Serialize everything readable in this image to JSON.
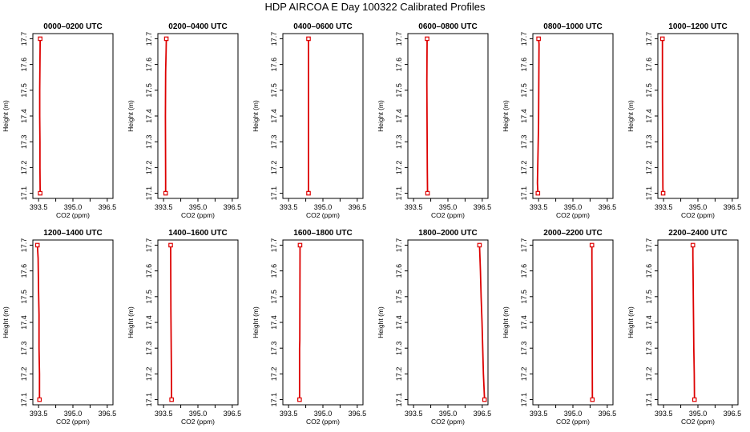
{
  "figure": {
    "title": "HDP AIRCOA E  Day 100322  Calibrated Profiles"
  },
  "style": {
    "line_color": "#dd0000",
    "frame_color": "#000000",
    "background": "#ffffff"
  },
  "chart_data": [
    {
      "type": "line",
      "title": "0000–0200 UTC",
      "xlabel": "CO2 (ppm)",
      "ylabel": "Height (m)",
      "xlim": [
        393.25,
        396.75
      ],
      "ylim": [
        17.08,
        17.72
      ],
      "xticks": [
        393.5,
        395.0,
        396.5
      ],
      "xtick_labels": [
        "393.5",
        "395.0",
        "396.5"
      ],
      "yticks": [
        17.1,
        17.2,
        17.3,
        17.4,
        17.5,
        17.6,
        17.7
      ],
      "grid": false,
      "marker": "open-square",
      "x": [
        393.57,
        393.56,
        393.56,
        393.55,
        393.55,
        393.57
      ],
      "y": [
        17.1,
        17.2,
        17.3,
        17.4,
        17.5,
        17.7
      ]
    },
    {
      "type": "line",
      "title": "0200–0400 UTC",
      "xlabel": "CO2 (ppm)",
      "ylabel": "Height (m)",
      "xlim": [
        393.25,
        396.75
      ],
      "ylim": [
        17.08,
        17.72
      ],
      "xticks": [
        393.5,
        395.0,
        396.5
      ],
      "xtick_labels": [
        "393.5",
        "395.0",
        "396.5"
      ],
      "yticks": [
        17.1,
        17.2,
        17.3,
        17.4,
        17.5,
        17.6,
        17.7
      ],
      "grid": false,
      "marker": "open-square",
      "x": [
        393.59,
        393.59,
        393.58,
        393.59,
        393.61,
        393.62
      ],
      "y": [
        17.1,
        17.16,
        17.4,
        17.57,
        17.65,
        17.7
      ]
    },
    {
      "type": "line",
      "title": "0400–0600 UTC",
      "xlabel": "CO2 (ppm)",
      "ylabel": "Height (m)",
      "xlim": [
        393.25,
        396.75
      ],
      "ylim": [
        17.08,
        17.72
      ],
      "xticks": [
        393.5,
        395.0,
        396.5
      ],
      "xtick_labels": [
        "393.5",
        "395.0",
        "396.5"
      ],
      "yticks": [
        17.1,
        17.2,
        17.3,
        17.4,
        17.5,
        17.6,
        17.7
      ],
      "grid": false,
      "marker": "open-square",
      "x": [
        394.37,
        394.37,
        394.37,
        394.37
      ],
      "y": [
        17.1,
        17.45,
        17.68,
        17.7
      ]
    },
    {
      "type": "line",
      "title": "0600–0800 UTC",
      "xlabel": "CO2 (ppm)",
      "ylabel": "Height (m)",
      "xlim": [
        393.25,
        396.75
      ],
      "ylim": [
        17.08,
        17.72
      ],
      "xticks": [
        393.5,
        395.0,
        396.5
      ],
      "xtick_labels": [
        "393.5",
        "395.0",
        "396.5"
      ],
      "yticks": [
        17.1,
        17.2,
        17.3,
        17.4,
        17.5,
        17.6,
        17.7
      ],
      "grid": false,
      "marker": "open-square",
      "x": [
        394.11,
        394.1,
        394.08,
        394.09,
        394.09
      ],
      "y": [
        17.1,
        17.19,
        17.53,
        17.68,
        17.7
      ]
    },
    {
      "type": "line",
      "title": "0800–1000 UTC",
      "xlabel": "CO2 (ppm)",
      "ylabel": "Height (m)",
      "xlim": [
        393.25,
        396.75
      ],
      "ylim": [
        17.08,
        17.72
      ],
      "xticks": [
        393.5,
        395.0,
        396.5
      ],
      "xtick_labels": [
        "393.5",
        "395.0",
        "396.5"
      ],
      "yticks": [
        17.1,
        17.2,
        17.3,
        17.4,
        17.5,
        17.6,
        17.7
      ],
      "grid": false,
      "marker": "open-square",
      "x": [
        393.47,
        393.45,
        393.5,
        393.52,
        393.5
      ],
      "y": [
        17.1,
        17.14,
        17.37,
        17.68,
        17.7
      ]
    },
    {
      "type": "line",
      "title": "1000–1200 UTC",
      "xlabel": "CO2 (ppm)",
      "ylabel": "Height (m)",
      "xlim": [
        393.25,
        396.75
      ],
      "ylim": [
        17.08,
        17.72
      ],
      "xticks": [
        393.5,
        395.0,
        396.5
      ],
      "xtick_labels": [
        "393.5",
        "395.0",
        "396.5"
      ],
      "yticks": [
        17.1,
        17.2,
        17.3,
        17.4,
        17.5,
        17.6,
        17.7
      ],
      "grid": false,
      "marker": "open-square",
      "x": [
        393.48,
        393.47,
        393.45,
        393.45,
        393.45
      ],
      "y": [
        17.1,
        17.12,
        17.46,
        17.68,
        17.7
      ]
    },
    {
      "type": "line",
      "title": "1200–1400 UTC",
      "xlabel": "CO2 (ppm)",
      "ylabel": "Height (m)",
      "xlim": [
        393.25,
        396.75
      ],
      "ylim": [
        17.08,
        17.72
      ],
      "xticks": [
        393.5,
        395.0,
        396.5
      ],
      "xtick_labels": [
        "393.5",
        "395.0",
        "396.5"
      ],
      "yticks": [
        17.1,
        17.2,
        17.3,
        17.4,
        17.5,
        17.6,
        17.7
      ],
      "grid": false,
      "marker": "open-square",
      "x": [
        393.54,
        393.54,
        393.52,
        393.52,
        393.5,
        393.48,
        393.46,
        393.45
      ],
      "y": [
        17.1,
        17.2,
        17.3,
        17.43,
        17.52,
        17.65,
        17.68,
        17.7
      ]
    },
    {
      "type": "line",
      "title": "1400–1600 UTC",
      "xlabel": "CO2 (ppm)",
      "ylabel": "Height (m)",
      "xlim": [
        393.25,
        396.75
      ],
      "ylim": [
        17.08,
        17.72
      ],
      "xticks": [
        393.5,
        395.0,
        396.5
      ],
      "xtick_labels": [
        "393.5",
        "395.0",
        "396.5"
      ],
      "yticks": [
        17.1,
        17.2,
        17.3,
        17.4,
        17.5,
        17.6,
        17.7
      ],
      "grid": false,
      "marker": "open-square",
      "x": [
        393.85,
        393.84,
        393.82,
        393.81,
        393.81
      ],
      "y": [
        17.1,
        17.23,
        17.44,
        17.68,
        17.7
      ]
    },
    {
      "type": "line",
      "title": "1600–1800 UTC",
      "xlabel": "CO2 (ppm)",
      "ylabel": "Height (m)",
      "xlim": [
        393.25,
        396.75
      ],
      "ylim": [
        17.08,
        17.72
      ],
      "xticks": [
        393.5,
        395.0,
        396.5
      ],
      "xtick_labels": [
        "393.5",
        "395.0",
        "396.5"
      ],
      "yticks": [
        17.1,
        17.2,
        17.3,
        17.4,
        17.5,
        17.6,
        17.7
      ],
      "grid": false,
      "marker": "open-square",
      "x": [
        393.98,
        393.98,
        393.99,
        394.0,
        394.0
      ],
      "y": [
        17.1,
        17.3,
        17.33,
        17.68,
        17.7
      ]
    },
    {
      "type": "line",
      "title": "1800–2000 UTC",
      "xlabel": "CO2 (ppm)",
      "ylabel": "Height (m)",
      "xlim": [
        393.25,
        396.75
      ],
      "ylim": [
        17.08,
        17.72
      ],
      "xticks": [
        393.5,
        395.0,
        396.5
      ],
      "xtick_labels": [
        "393.5",
        "395.0",
        "396.5"
      ],
      "yticks": [
        17.1,
        17.2,
        17.3,
        17.4,
        17.5,
        17.6,
        17.7
      ],
      "grid": false,
      "marker": "open-square",
      "x": [
        396.6,
        396.55,
        396.52,
        396.49,
        396.45,
        396.42,
        396.38
      ],
      "y": [
        17.1,
        17.2,
        17.3,
        17.4,
        17.5,
        17.6,
        17.7
      ]
    },
    {
      "type": "line",
      "title": "2000–2200 UTC",
      "xlabel": "CO2 (ppm)",
      "ylabel": "Height (m)",
      "xlim": [
        393.25,
        396.75
      ],
      "ylim": [
        17.08,
        17.72
      ],
      "xticks": [
        393.5,
        395.0,
        396.5
      ],
      "xtick_labels": [
        "393.5",
        "395.0",
        "396.5"
      ],
      "yticks": [
        17.1,
        17.2,
        17.3,
        17.4,
        17.5,
        17.6,
        17.7
      ],
      "grid": false,
      "marker": "open-square",
      "x": [
        395.85,
        395.85,
        395.84,
        395.83,
        395.83
      ],
      "y": [
        17.1,
        17.12,
        17.4,
        17.65,
        17.7
      ]
    },
    {
      "type": "line",
      "title": "2200–2400 UTC",
      "xlabel": "CO2 (ppm)",
      "ylabel": "Height (m)",
      "xlim": [
        393.25,
        396.75
      ],
      "ylim": [
        17.08,
        17.72
      ],
      "xticks": [
        393.5,
        395.0,
        396.5
      ],
      "xtick_labels": [
        "393.5",
        "395.0",
        "396.5"
      ],
      "yticks": [
        17.1,
        17.2,
        17.3,
        17.4,
        17.5,
        17.6,
        17.7
      ],
      "grid": false,
      "marker": "open-square",
      "x": [
        394.85,
        394.84,
        394.82,
        394.81,
        394.8,
        394.79,
        394.78,
        394.78
      ],
      "y": [
        17.1,
        17.2,
        17.3,
        17.4,
        17.48,
        17.58,
        17.66,
        17.7
      ]
    }
  ]
}
